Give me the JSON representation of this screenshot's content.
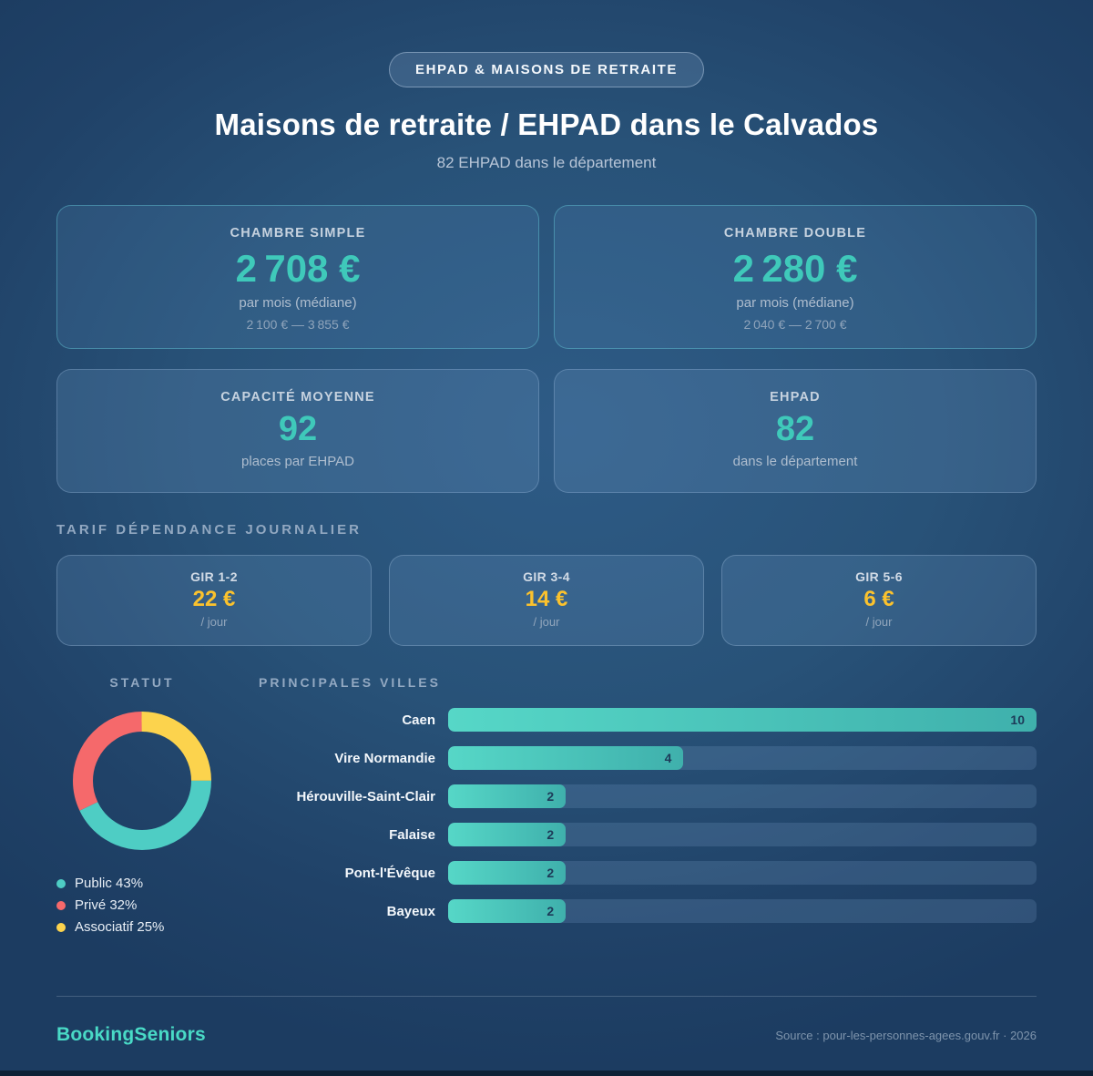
{
  "badge": {
    "label": "EHPAD & MAISONS DE RETRAITE"
  },
  "header": {
    "title": "Maisons de retraite / EHPAD dans le Calvados",
    "subtitle": "82 EHPAD dans le département"
  },
  "price_cards": [
    {
      "label": "CHAMBRE SIMPLE",
      "value": "2 708 €",
      "unit": "par mois (médiane)",
      "range": "2 100 € — 3 855 €"
    },
    {
      "label": "CHAMBRE DOUBLE",
      "value": "2 280 €",
      "unit": "par mois (médiane)",
      "range": "2 040 € — 2 700 €"
    }
  ],
  "stat_cards": [
    {
      "label": "CAPACITÉ MOYENNE",
      "value": "92",
      "unit": "places par EHPAD"
    },
    {
      "label": "EHPAD",
      "value": "82",
      "unit": "dans le département"
    }
  ],
  "tarif_section": {
    "title": "TARIF DÉPENDANCE JOURNALIER",
    "cards": [
      {
        "label": "GIR 1-2",
        "value": "22 €",
        "unit": "/ jour"
      },
      {
        "label": "GIR 3-4",
        "value": "14 €",
        "unit": "/ jour"
      },
      {
        "label": "GIR 5-6",
        "value": "6 €",
        "unit": "/ jour"
      }
    ]
  },
  "chart_data": [
    {
      "type": "pie",
      "title": "STATUT",
      "donut": true,
      "slices": [
        {
          "label": "Public",
          "value": 43,
          "color": "#4ecdc4"
        },
        {
          "label": "Privé",
          "value": 32,
          "color": "#f5696b"
        },
        {
          "label": "Associatif",
          "value": 25,
          "color": "#fcd34d"
        }
      ],
      "draw_order_clockwise_from_top": [
        2,
        0,
        1
      ],
      "legend_position": "bottom-left"
    },
    {
      "type": "bar",
      "title": "PRINCIPALES VILLES",
      "orientation": "horizontal",
      "categories": [
        "Caen",
        "Vire Normandie",
        "Hérouville-Saint-Clair",
        "Falaise",
        "Pont-l'Évêque",
        "Bayeux"
      ],
      "values": [
        10,
        4,
        2,
        2,
        2,
        2
      ],
      "xlim": [
        0,
        10
      ],
      "bar_color_start": "#56d7c7",
      "bar_color_end": "#3fb0ac",
      "value_label_color": "#1d3a58"
    }
  ],
  "footer": {
    "brand": "BookingSeniors",
    "source": "Source : pour-les-personnes-agees.gouv.fr · 2026"
  },
  "colors": {
    "accent_teal": "#3fc9ba",
    "accent_yellow": "#fbc22d",
    "background_center": "#2e5b86",
    "background_edge": "#1c3c61"
  }
}
